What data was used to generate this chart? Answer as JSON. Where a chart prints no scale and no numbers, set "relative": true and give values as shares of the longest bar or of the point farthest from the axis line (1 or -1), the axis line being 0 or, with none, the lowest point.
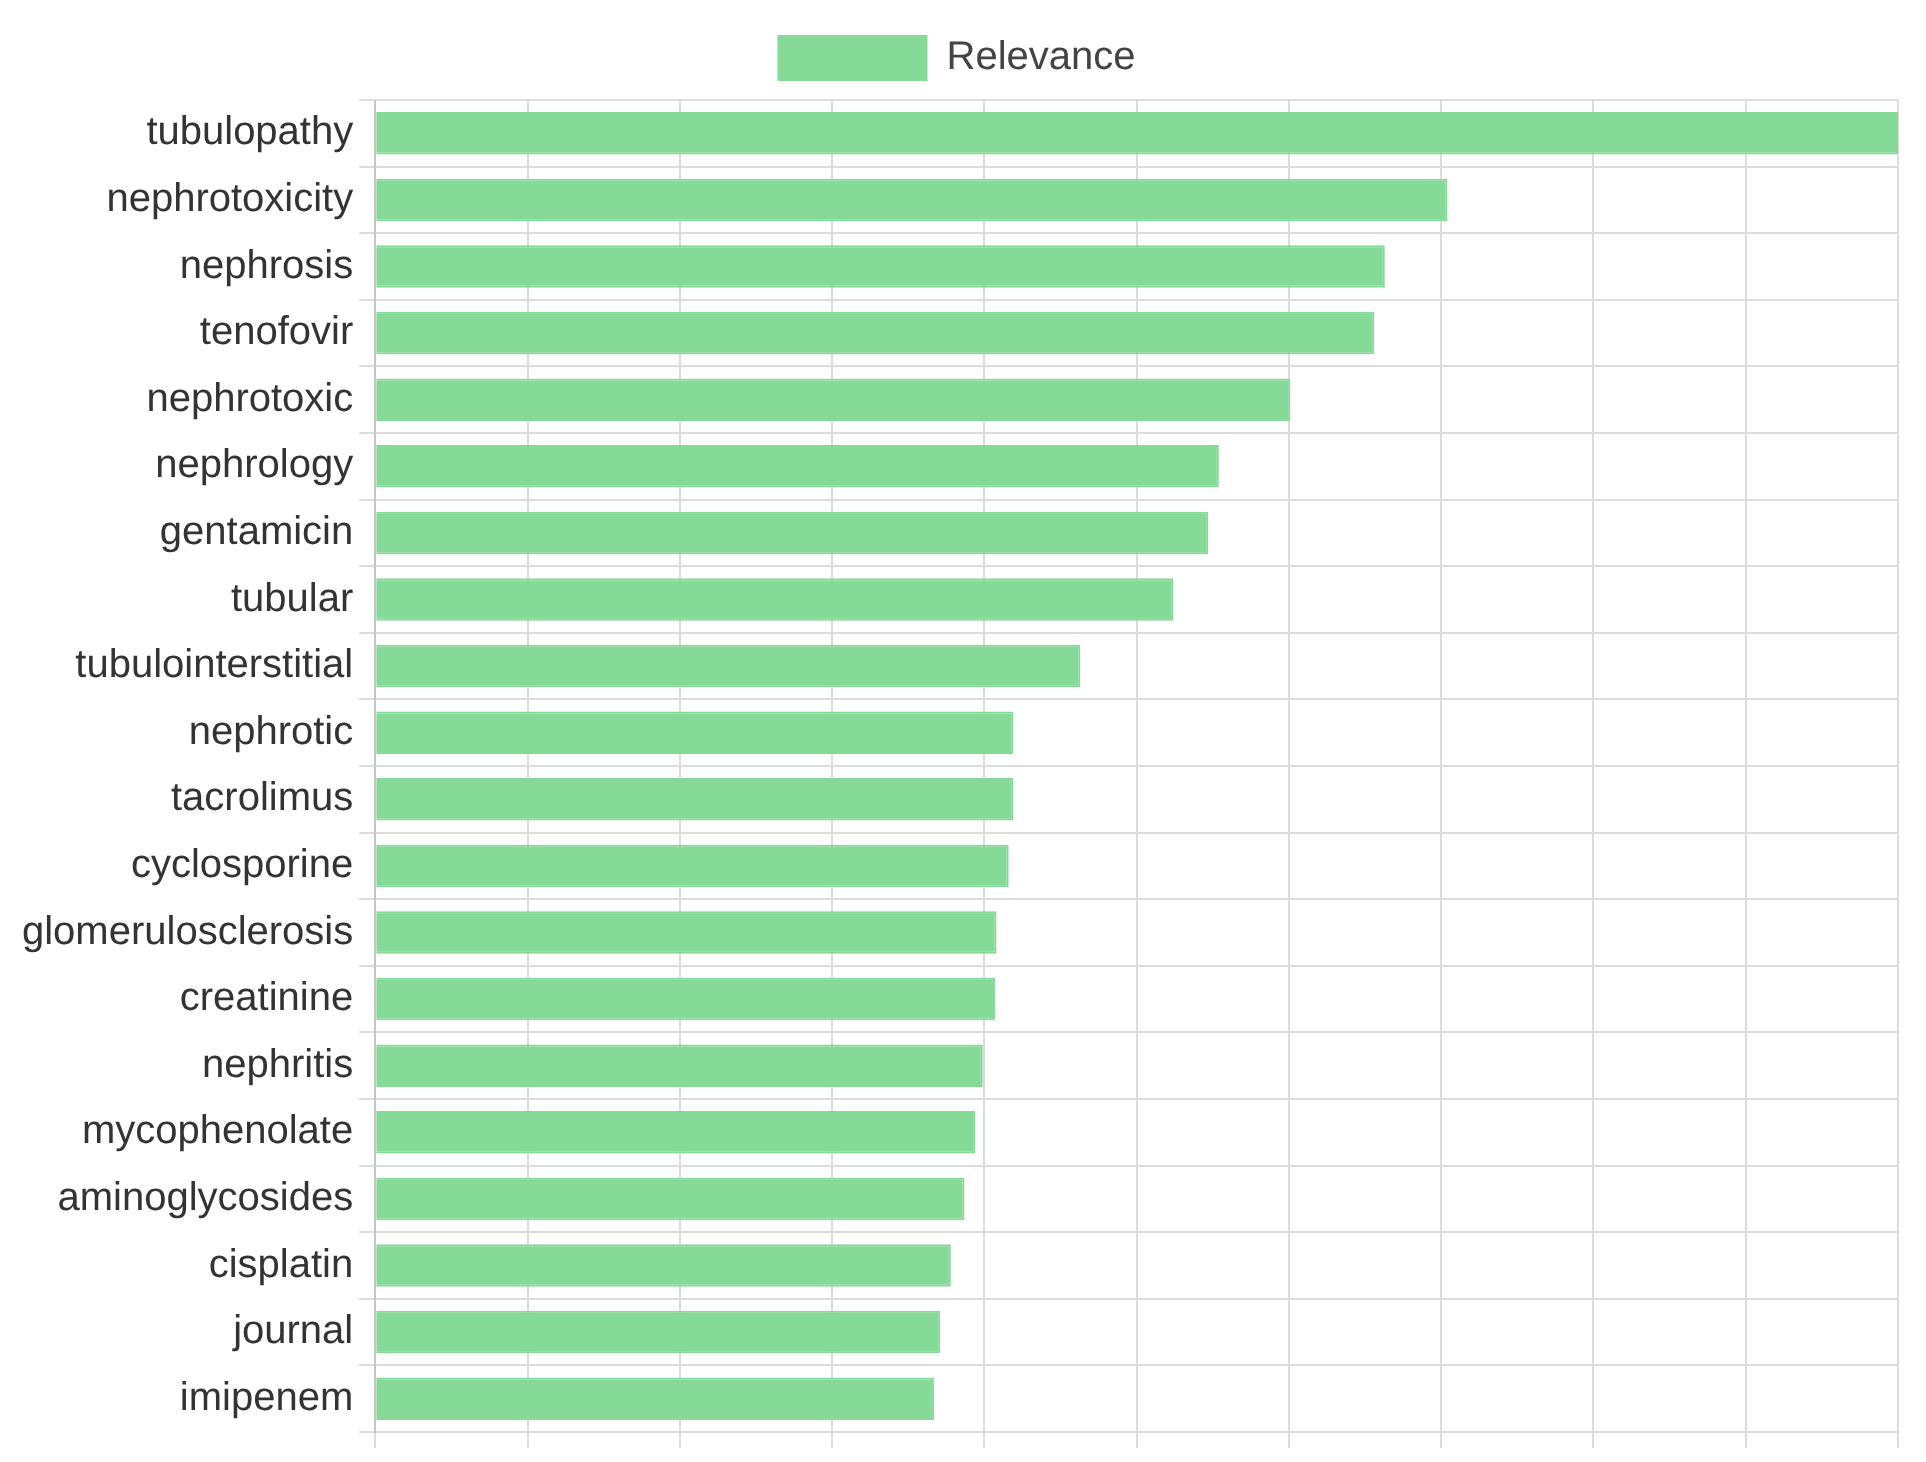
{
  "chart_data": {
    "type": "bar",
    "orientation": "horizontal",
    "relative": true,
    "grid": true,
    "legend": "top",
    "categories": [
      "tubulopathy",
      "nephrotoxicity",
      "nephrosis",
      "tenofovir",
      "nephrotoxic",
      "nephrology",
      "gentamicin",
      "tubular",
      "tubulointerstitial",
      "nephrotic",
      "tacrolimus",
      "cyclosporine",
      "glomerulosclerosis",
      "creatinine",
      "nephritis",
      "mycophenolate",
      "aminoglycosides",
      "cisplatin",
      "journal",
      "imipenem"
    ],
    "series": [
      {
        "name": "Relevance",
        "color": "#86da98",
        "values": [
          1,
          0.704,
          0.663,
          0.656,
          0.601,
          0.554,
          0.547,
          0.524,
          0.463,
          0.419,
          0.419,
          0.416,
          0.408,
          0.407,
          0.399,
          0.394,
          0.387,
          0.378,
          0.371,
          0.367
        ]
      }
    ]
  }
}
